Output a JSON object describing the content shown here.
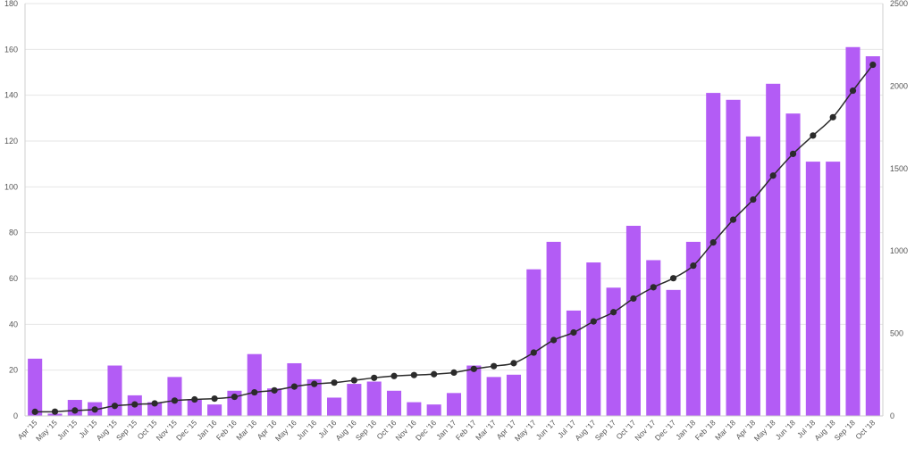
{
  "chart_data": {
    "type": "bar",
    "categories": [
      "Apr '15",
      "May '15",
      "Jun '15",
      "Jul '15",
      "Aug '15",
      "Sep '15",
      "Oct '15",
      "Nov '15",
      "Dec '15",
      "Jan '16",
      "Feb '16",
      "Mar '16",
      "Apr '16",
      "May '16",
      "Jun '16",
      "Jul '16",
      "Aug '16",
      "Sep '16",
      "Oct '16",
      "Nov '16",
      "Dec '16",
      "Jan '17",
      "Feb '17",
      "Mar '17",
      "Apr '17",
      "May '17",
      "Jun '17",
      "Jul '17",
      "Aug '17",
      "Sep '17",
      "Oct '17",
      "Nov '17",
      "Dec '17",
      "Jan '18",
      "Feb '18",
      "Mar '18",
      "Apr '18",
      "May '18",
      "Jun '18",
      "Jul '18",
      "Aug '18",
      "Sep '18",
      "Oct '18"
    ],
    "series": [
      {
        "type": "bar",
        "axis": "left",
        "color": "#b35cf5",
        "values": [
          25,
          1,
          7,
          6,
          22,
          9,
          6,
          17,
          7,
          5,
          11,
          27,
          12,
          23,
          16,
          8,
          14,
          15,
          11,
          6,
          5,
          10,
          22,
          17,
          18,
          64,
          76,
          46,
          67,
          56,
          83,
          68,
          55,
          76,
          141,
          138,
          122,
          145,
          132,
          111,
          111,
          161,
          157
        ]
      },
      {
        "type": "line",
        "axis": "right",
        "color": "#2b2b2b",
        "values": [
          25,
          26,
          33,
          39,
          61,
          70,
          76,
          93,
          100,
          105,
          116,
          143,
          155,
          178,
          194,
          202,
          216,
          231,
          242,
          248,
          253,
          263,
          285,
          302,
          320,
          384,
          460,
          506,
          573,
          629,
          712,
          780,
          835,
          911,
          1052,
          1190,
          1312,
          1457,
          1589,
          1700,
          1811,
          1972,
          2129
        ]
      }
    ],
    "y_left": {
      "min": 0,
      "max": 180,
      "ticks": [
        0,
        20,
        40,
        60,
        80,
        100,
        120,
        140,
        160,
        180
      ]
    },
    "y_right": {
      "min": 0,
      "max": 2500,
      "ticks": [
        0,
        500,
        1000,
        1500,
        2000,
        2500
      ]
    },
    "grid": true,
    "legend": "none"
  }
}
